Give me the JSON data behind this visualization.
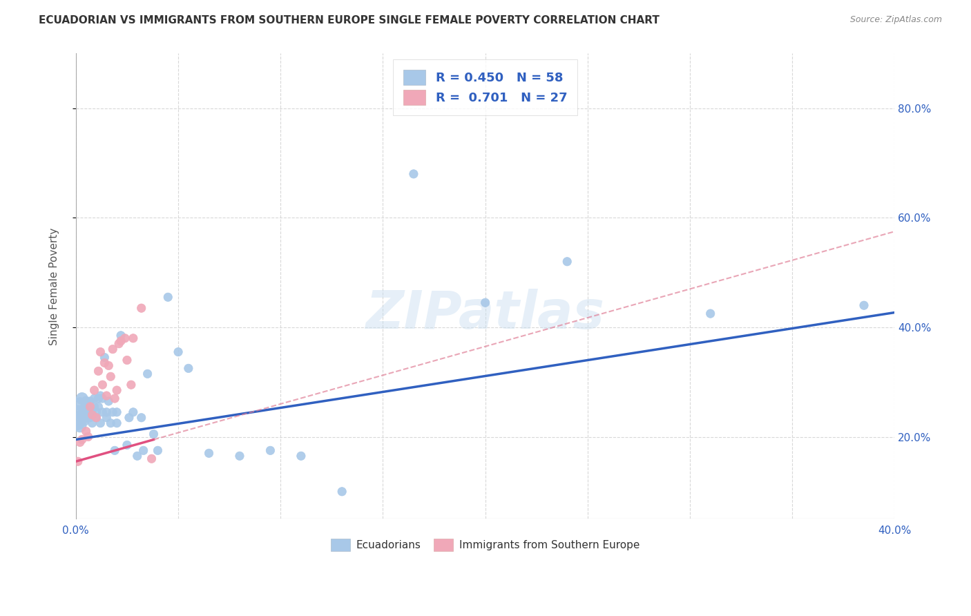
{
  "title": "ECUADORIAN VS IMMIGRANTS FROM SOUTHERN EUROPE SINGLE FEMALE POVERTY CORRELATION CHART",
  "source": "Source: ZipAtlas.com",
  "xlabel": "",
  "ylabel": "Single Female Poverty",
  "xlim": [
    0.0,
    0.4
  ],
  "ylim": [
    0.05,
    0.9
  ],
  "xtick_positions": [
    0.0,
    0.05,
    0.1,
    0.15,
    0.2,
    0.25,
    0.3,
    0.35,
    0.4
  ],
  "xtick_labels": [
    "0.0%",
    "",
    "",
    "",
    "",
    "",
    "",
    "",
    "40.0%"
  ],
  "ytick_positions": [
    0.2,
    0.4,
    0.6,
    0.8
  ],
  "ytick_labels": [
    "20.0%",
    "40.0%",
    "60.0%",
    "80.0%"
  ],
  "background_color": "#ffffff",
  "grid_color": "#d8d8d8",
  "blue_dot_color": "#a8c8e8",
  "pink_dot_color": "#f0a8b8",
  "blue_line_color": "#3060c0",
  "pink_line_color": "#e05080",
  "pink_dash_color": "#e08098",
  "R_blue": 0.45,
  "N_blue": 58,
  "R_pink": 0.701,
  "N_pink": 27,
  "watermark": "ZIPatlas",
  "legend_label_blue": "Ecuadorians",
  "legend_label_pink": "Immigrants from Southern Europe",
  "blue_x": [
    0.001,
    0.001,
    0.002,
    0.002,
    0.003,
    0.003,
    0.004,
    0.004,
    0.005,
    0.005,
    0.006,
    0.006,
    0.007,
    0.007,
    0.008,
    0.008,
    0.009,
    0.009,
    0.01,
    0.01,
    0.011,
    0.011,
    0.012,
    0.012,
    0.013,
    0.013,
    0.014,
    0.015,
    0.015,
    0.016,
    0.017,
    0.018,
    0.019,
    0.02,
    0.02,
    0.022,
    0.025,
    0.026,
    0.028,
    0.03,
    0.032,
    0.033,
    0.035,
    0.038,
    0.04,
    0.045,
    0.05,
    0.055,
    0.065,
    0.08,
    0.095,
    0.11,
    0.13,
    0.165,
    0.2,
    0.24,
    0.31,
    0.385
  ],
  "blue_y": [
    0.245,
    0.225,
    0.22,
    0.26,
    0.24,
    0.27,
    0.23,
    0.25,
    0.235,
    0.265,
    0.24,
    0.255,
    0.235,
    0.265,
    0.225,
    0.245,
    0.27,
    0.255,
    0.235,
    0.245,
    0.255,
    0.27,
    0.225,
    0.275,
    0.245,
    0.27,
    0.345,
    0.235,
    0.245,
    0.265,
    0.225,
    0.245,
    0.175,
    0.245,
    0.225,
    0.385,
    0.185,
    0.235,
    0.245,
    0.165,
    0.235,
    0.175,
    0.315,
    0.205,
    0.175,
    0.455,
    0.355,
    0.325,
    0.17,
    0.165,
    0.175,
    0.165,
    0.1,
    0.68,
    0.445,
    0.52,
    0.425,
    0.44
  ],
  "blue_sizes": [
    200,
    200,
    180,
    180,
    150,
    150,
    130,
    130,
    100,
    100,
    100,
    80,
    80,
    80,
    80,
    80,
    80,
    80,
    80,
    80,
    80,
    80,
    80,
    80,
    80,
    80,
    80,
    80,
    80,
    80,
    80,
    80,
    80,
    80,
    80,
    80,
    80,
    80,
    80,
    80,
    80,
    80,
    80,
    80,
    80,
    80,
    80,
    80,
    80,
    80,
    80,
    80,
    80,
    80,
    80,
    80,
    80,
    80
  ],
  "pink_x": [
    0.001,
    0.002,
    0.003,
    0.005,
    0.006,
    0.007,
    0.008,
    0.009,
    0.01,
    0.011,
    0.012,
    0.013,
    0.014,
    0.015,
    0.016,
    0.017,
    0.018,
    0.019,
    0.02,
    0.021,
    0.022,
    0.024,
    0.025,
    0.027,
    0.028,
    0.032,
    0.037
  ],
  "pink_y": [
    0.155,
    0.19,
    0.195,
    0.21,
    0.2,
    0.255,
    0.24,
    0.285,
    0.235,
    0.32,
    0.355,
    0.295,
    0.335,
    0.275,
    0.33,
    0.31,
    0.36,
    0.27,
    0.285,
    0.37,
    0.375,
    0.38,
    0.34,
    0.295,
    0.38,
    0.435,
    0.16
  ],
  "pink_sizes": [
    80,
    80,
    80,
    80,
    80,
    80,
    80,
    80,
    80,
    80,
    80,
    80,
    80,
    80,
    80,
    80,
    80,
    80,
    80,
    80,
    80,
    80,
    80,
    80,
    80,
    80,
    80
  ],
  "blue_trend_intercept": 0.195,
  "blue_trend_slope": 0.58,
  "pink_trend_intercept": 0.155,
  "pink_trend_slope": 1.05
}
